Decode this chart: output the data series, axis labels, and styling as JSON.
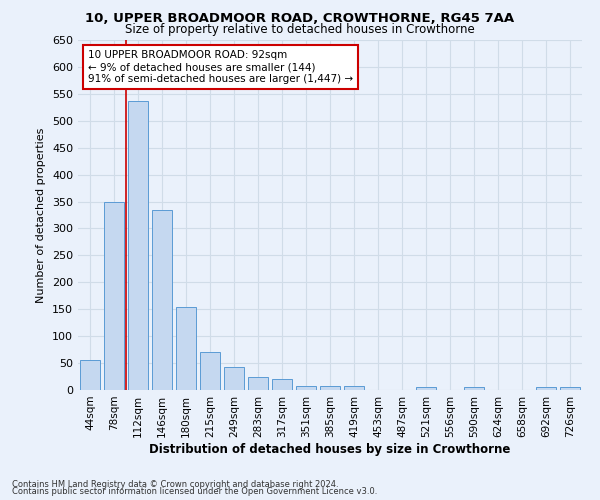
{
  "title": "10, UPPER BROADMOOR ROAD, CROWTHORNE, RG45 7AA",
  "subtitle": "Size of property relative to detached houses in Crowthorne",
  "xlabel": "Distribution of detached houses by size in Crowthorne",
  "ylabel": "Number of detached properties",
  "bar_labels": [
    "44sqm",
    "78sqm",
    "112sqm",
    "146sqm",
    "180sqm",
    "215sqm",
    "249sqm",
    "283sqm",
    "317sqm",
    "351sqm",
    "385sqm",
    "419sqm",
    "453sqm",
    "487sqm",
    "521sqm",
    "556sqm",
    "590sqm",
    "624sqm",
    "658sqm",
    "692sqm",
    "726sqm"
  ],
  "bar_values": [
    55,
    350,
    537,
    335,
    155,
    70,
    42,
    25,
    20,
    8,
    8,
    8,
    0,
    0,
    5,
    0,
    5,
    0,
    0,
    5,
    5
  ],
  "bar_color": "#c5d8f0",
  "bar_edgecolor": "#5b9bd5",
  "grid_color": "#d0dce8",
  "background_color": "#eaf1fb",
  "ylim": [
    0,
    650
  ],
  "yticks": [
    0,
    50,
    100,
    150,
    200,
    250,
    300,
    350,
    400,
    450,
    500,
    550,
    600,
    650
  ],
  "property_line_color": "#cc0000",
  "annotation_text": "10 UPPER BROADMOOR ROAD: 92sqm\n← 9% of detached houses are smaller (144)\n91% of semi-detached houses are larger (1,447) →",
  "annotation_box_color": "#ffffff",
  "annotation_box_edgecolor": "#cc0000",
  "footnote1": "Contains HM Land Registry data © Crown copyright and database right 2024.",
  "footnote2": "Contains public sector information licensed under the Open Government Licence v3.0."
}
